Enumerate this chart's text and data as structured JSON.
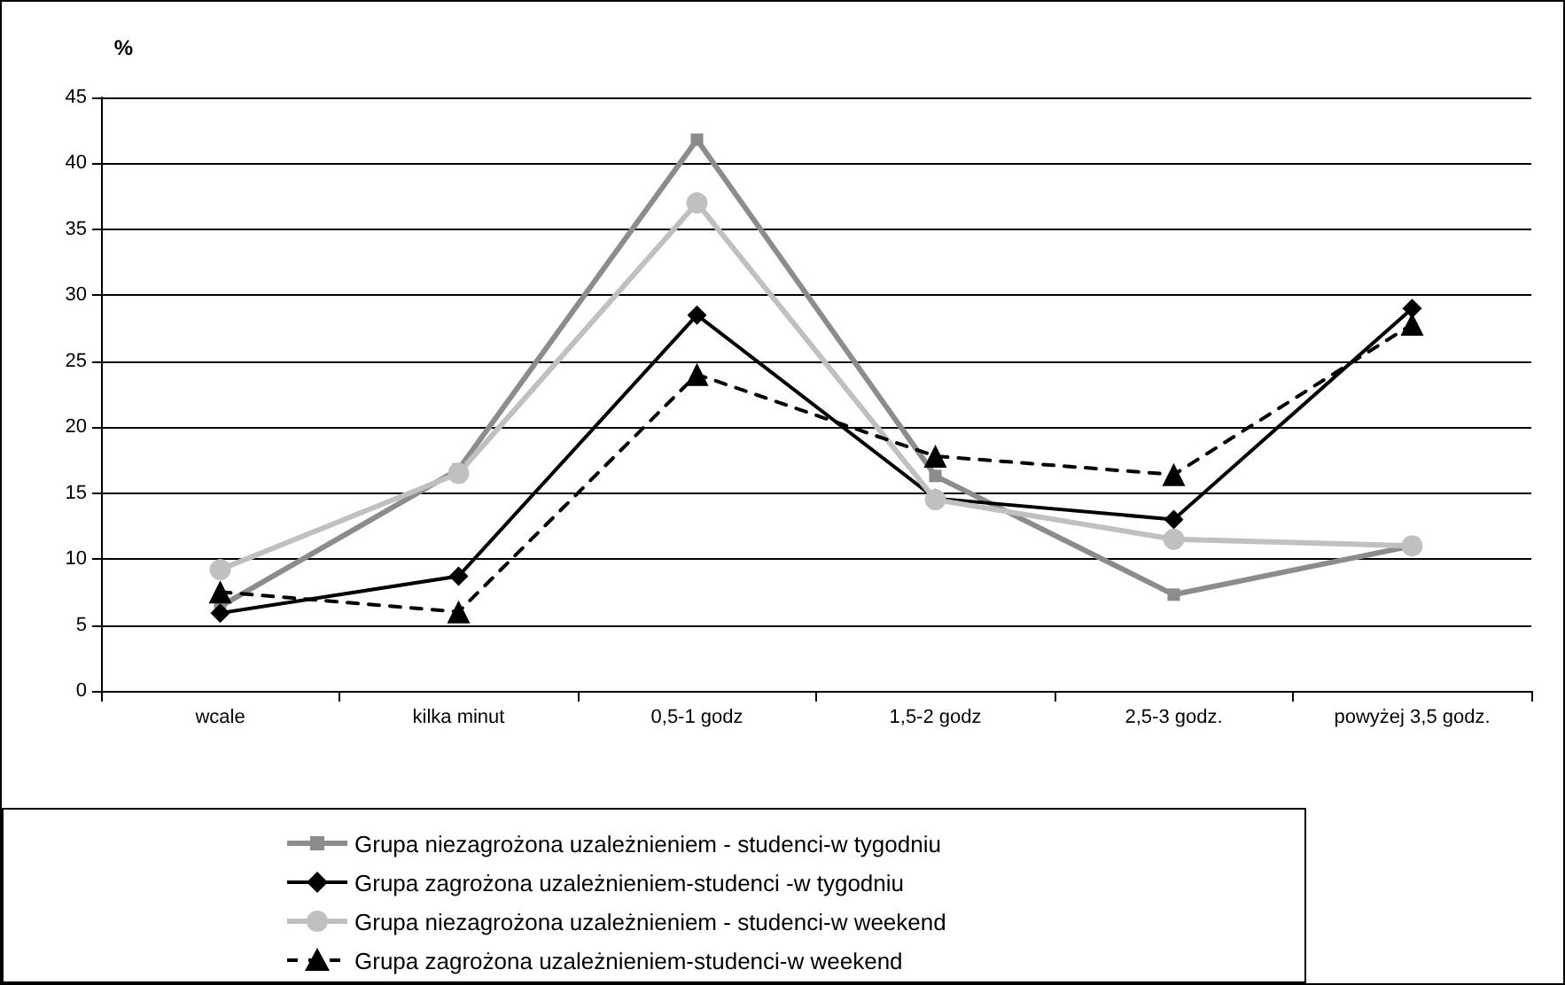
{
  "chart_data": {
    "type": "line",
    "ylabel": "%",
    "categories": [
      "wcale",
      "kilka minut",
      "0,5-1 godz",
      "1,5-2 godz",
      "2,5-3 godz.",
      "powyżej 3,5 godz."
    ],
    "series": [
      {
        "name": "Grupa niezagrożona uzależnieniem - studenci-w tygodniu",
        "color": "#8c8c8c",
        "marker": "square",
        "line_style": "solid",
        "values": [
          6.4,
          16.8,
          41.8,
          16.3,
          7.3,
          11.0
        ]
      },
      {
        "name": "Grupa zagrożona uzależnieniem-studenci -w tygodniu",
        "color": "#000000",
        "marker": "diamond",
        "line_style": "solid",
        "values": [
          5.9,
          8.7,
          28.5,
          14.6,
          13.0,
          29.0
        ]
      },
      {
        "name": "Grupa niezagrożona uzależnieniem - studenci-w weekend",
        "color": "#c0c0c0",
        "marker": "circle",
        "line_style": "solid",
        "values": [
          9.2,
          16.5,
          37.0,
          14.5,
          11.5,
          11.0
        ]
      },
      {
        "name": "Grupa zagrożona uzależnieniem-studenci-w weekend",
        "color": "#000000",
        "marker": "triangle",
        "line_style": "dashed",
        "values": [
          7.5,
          6.0,
          24.0,
          17.8,
          16.4,
          27.8
        ]
      }
    ],
    "ylim": [
      0,
      45
    ],
    "yticks": [
      0,
      5,
      10,
      15,
      20,
      25,
      30,
      35,
      40,
      45
    ],
    "grid": "y",
    "legend": "bottom"
  }
}
